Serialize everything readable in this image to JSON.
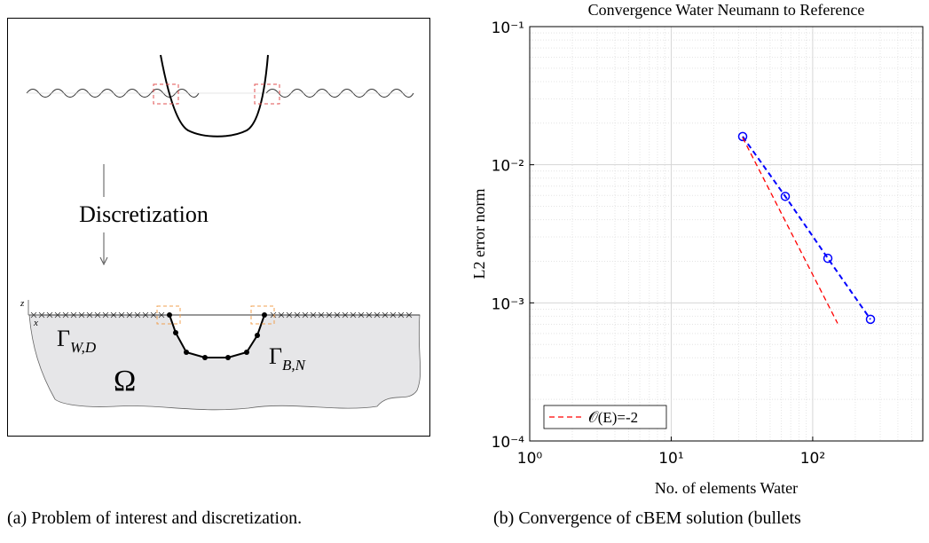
{
  "panel_a": {
    "arrow_label": "Discretization",
    "gamma_w": {
      "symbol": "Γ",
      "sub": "W,D"
    },
    "omega": "Ω",
    "gamma_b": {
      "symbol": "Γ",
      "sub": "B,N"
    },
    "axis_z": "z",
    "axis_x": "x"
  },
  "captions": [
    "(a) Problem of interest and discretization.",
    "(b) Convergence of cBEM solution (bullets"
  ],
  "chart_data": {
    "type": "line",
    "title": "Convergence Water Neumann to Reference",
    "x_label": "No. of elements Water",
    "y_label": "L2 error norm",
    "log_x": true,
    "log_y": true,
    "grid": true,
    "minor_grid": true,
    "legend_position": "lower left",
    "xlim": [
      1,
      600
    ],
    "xticks": [
      {
        "value": 1,
        "label": "10⁰"
      },
      {
        "value": 10,
        "label": "10¹"
      },
      {
        "value": 100,
        "label": "10²"
      }
    ],
    "ylim": [
      0.0001,
      0.1
    ],
    "yticks": [
      {
        "value": 0.0001,
        "label": "10⁻⁴"
      },
      {
        "value": 0.001,
        "label": "10⁻³"
      },
      {
        "value": 0.01,
        "label": "10⁻²"
      },
      {
        "value": 0.1,
        "label": "10⁻¹"
      }
    ],
    "series": [
      {
        "color": "#0000ff",
        "style": "dashed",
        "marker": "circle",
        "x": [
          32,
          64,
          128,
          256
        ],
        "values": [
          0.016,
          0.0059,
          0.0021,
          0.00076
        ]
      },
      {
        "name": "𝒪(E)=-2",
        "color": "#ff0000",
        "style": "dashed",
        "x": [
          32,
          150
        ],
        "values": [
          0.0157,
          0.00071
        ]
      }
    ]
  }
}
